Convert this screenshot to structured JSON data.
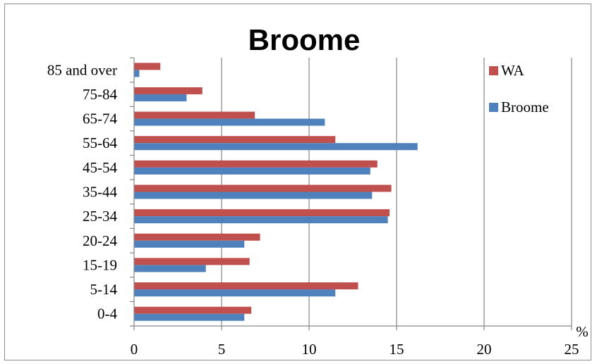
{
  "chart_data": {
    "type": "bar",
    "orientation": "horizontal",
    "title": "Broome",
    "xlabel": "%",
    "ylabel": "",
    "categories": [
      "0-4",
      "5-14",
      "15-19",
      "20-24",
      "25-34",
      "35-44",
      "45-54",
      "55-64",
      "65-74",
      "75-84",
      "85 and over"
    ],
    "series": [
      {
        "name": "WA",
        "color": "#c0504d",
        "values": [
          6.7,
          12.8,
          6.6,
          7.2,
          14.6,
          14.7,
          13.9,
          11.5,
          6.9,
          3.9,
          1.5
        ]
      },
      {
        "name": "Broome",
        "color": "#4f81bd",
        "values": [
          6.3,
          11.5,
          4.1,
          6.3,
          14.5,
          13.6,
          13.5,
          16.2,
          10.9,
          3.0,
          0.3
        ]
      }
    ],
    "xlim": [
      0,
      25
    ],
    "xticks": [
      "0",
      "5",
      "10",
      "15",
      "20",
      "25"
    ],
    "grid": true,
    "legend": {
      "position": "right-top",
      "entries": [
        "WA",
        "Broome"
      ]
    }
  }
}
